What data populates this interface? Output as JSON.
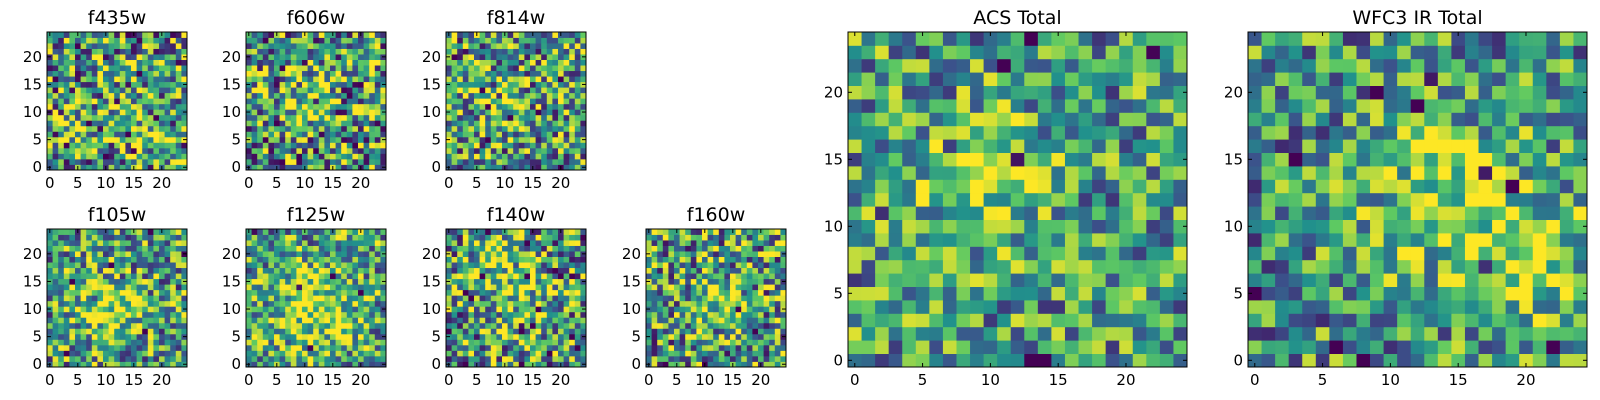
{
  "colormap": [
    "#440154",
    "#3b528b",
    "#21918c",
    "#5ec962",
    "#fde725"
  ],
  "chart_data": [
    {
      "type": "heatmap",
      "title": "f435w",
      "grid_size": 25,
      "xlim": [
        -0.5,
        24.5
      ],
      "ylim": [
        -0.5,
        24.5
      ],
      "xticks": [
        0,
        5,
        10,
        15,
        20
      ],
      "yticks": [
        0,
        5,
        10,
        15,
        20
      ],
      "grid": false,
      "seed": 11,
      "blobs": [
        [
          17,
          6,
          2.5,
          0.35
        ]
      ],
      "noise": 0.55,
      "base": 0.55,
      "pixel_values_shown": "approximate; per-pixel values not legible"
    },
    {
      "type": "heatmap",
      "title": "f606w",
      "grid_size": 25,
      "xlim": [
        -0.5,
        24.5
      ],
      "ylim": [
        -0.5,
        24.5
      ],
      "xticks": [
        0,
        5,
        10,
        15,
        20
      ],
      "yticks": [
        0,
        5,
        10,
        15,
        20
      ],
      "grid": false,
      "seed": 23,
      "blobs": [
        [
          9,
          12,
          3,
          0.3
        ]
      ],
      "noise": 0.55,
      "base": 0.55,
      "pixel_values_shown": "approximate; per-pixel values not legible"
    },
    {
      "type": "heatmap",
      "title": "f814w",
      "grid_size": 25,
      "xlim": [
        -0.5,
        24.5
      ],
      "ylim": [
        -0.5,
        24.5
      ],
      "xticks": [
        0,
        5,
        10,
        15,
        20
      ],
      "yticks": [
        0,
        5,
        10,
        15,
        20
      ],
      "grid": false,
      "seed": 37,
      "blobs": [
        [
          9,
          12,
          3,
          0.35
        ]
      ],
      "noise": 0.5,
      "base": 0.55,
      "pixel_values_shown": "approximate; per-pixel values not legible"
    },
    {
      "type": "heatmap",
      "title": "f105w",
      "grid_size": 25,
      "xlim": [
        -0.5,
        24.5
      ],
      "ylim": [
        -0.5,
        24.5
      ],
      "xticks": [
        0,
        5,
        10,
        15,
        20
      ],
      "yticks": [
        0,
        5,
        10,
        15,
        20
      ],
      "grid": false,
      "seed": 41,
      "blobs": [
        [
          11,
          10,
          4,
          0.35
        ]
      ],
      "noise": 0.45,
      "base": 0.55,
      "pixel_values_shown": "approximate; per-pixel values not legible"
    },
    {
      "type": "heatmap",
      "title": "f125w",
      "grid_size": 25,
      "xlim": [
        -0.5,
        24.5
      ],
      "ylim": [
        -0.5,
        24.5
      ],
      "xticks": [
        0,
        5,
        10,
        15,
        20
      ],
      "yticks": [
        0,
        5,
        10,
        15,
        20
      ],
      "grid": false,
      "seed": 53,
      "blobs": [
        [
          12,
          10,
          5,
          0.35
        ]
      ],
      "noise": 0.45,
      "base": 0.58,
      "pixel_values_shown": "approximate; per-pixel values not legible"
    },
    {
      "type": "heatmap",
      "title": "f140w",
      "grid_size": 25,
      "xlim": [
        -0.5,
        24.5
      ],
      "ylim": [
        -0.5,
        24.5
      ],
      "xticks": [
        0,
        5,
        10,
        15,
        20
      ],
      "yticks": [
        0,
        5,
        10,
        15,
        20
      ],
      "grid": false,
      "seed": 67,
      "blobs": [
        [
          8,
          20,
          3,
          0.3
        ],
        [
          12,
          12,
          4,
          0.25
        ]
      ],
      "noise": 0.5,
      "base": 0.55,
      "pixel_values_shown": "approximate; per-pixel values not legible"
    },
    {
      "type": "heatmap",
      "title": "f160w",
      "grid_size": 25,
      "xlim": [
        -0.5,
        24.5
      ],
      "ylim": [
        -0.5,
        24.5
      ],
      "xticks": [
        0,
        5,
        10,
        15,
        20
      ],
      "yticks": [
        0,
        5,
        10,
        15,
        20
      ],
      "grid": false,
      "seed": 79,
      "blobs": [
        [
          12,
          12,
          3,
          0.3
        ]
      ],
      "noise": 0.5,
      "base": 0.55,
      "pixel_values_shown": "approximate; per-pixel values not legible"
    },
    {
      "type": "heatmap",
      "title": "ACS Total",
      "grid_size": 25,
      "xlim": [
        -0.5,
        24.5
      ],
      "ylim": [
        -0.5,
        24.5
      ],
      "xticks": [
        0,
        5,
        10,
        15,
        20
      ],
      "yticks": [
        0,
        5,
        10,
        15,
        20
      ],
      "grid": false,
      "seed": 97,
      "blobs": [
        [
          9,
          13,
          3,
          0.35
        ]
      ],
      "noise": 0.4,
      "base": 0.55,
      "pixel_values_shown": "approximate; per-pixel values not legible"
    },
    {
      "type": "heatmap",
      "title": "WFC3 IR Total",
      "grid_size": 25,
      "xlim": [
        -0.5,
        24.5
      ],
      "ylim": [
        -0.5,
        24.5
      ],
      "xticks": [
        0,
        5,
        10,
        15,
        20
      ],
      "yticks": [
        0,
        5,
        10,
        15,
        20
      ],
      "grid": false,
      "seed": 113,
      "blobs": [
        [
          14,
          12,
          4,
          0.35
        ],
        [
          21,
          7,
          3,
          0.3
        ]
      ],
      "noise": 0.4,
      "base": 0.52,
      "pixel_values_shown": "approximate; per-pixel values not legible"
    }
  ]
}
